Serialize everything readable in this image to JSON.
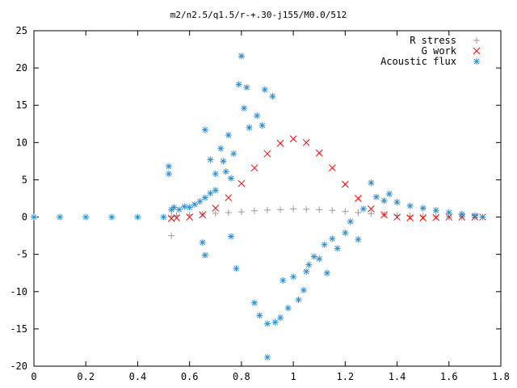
{
  "chart_data": {
    "type": "scatter",
    "title": "m2/n2.5/q1.5/r-+.30-j155/M0.0/512",
    "xlabel": "",
    "ylabel": "",
    "xlim": [
      0,
      1.8
    ],
    "ylim": [
      -20,
      25
    ],
    "x_ticks": [
      "0",
      "0.2",
      "0.4",
      "0.6",
      "0.8",
      "1",
      "1.2",
      "1.4",
      "1.6",
      "1.8"
    ],
    "y_ticks": [
      "-20",
      "-15",
      "-10",
      "-5",
      "0",
      "5",
      "10",
      "15",
      "20",
      "25"
    ],
    "grid": false,
    "legend_position": "top-right",
    "series": [
      {
        "name": "R stress",
        "marker": "plus",
        "color": "#999999",
        "points": [
          [
            0.53,
            -2.5
          ],
          [
            0.53,
            0.1
          ],
          [
            0.55,
            0.2
          ],
          [
            0.6,
            0.3
          ],
          [
            0.65,
            0.4
          ],
          [
            0.7,
            0.5
          ],
          [
            0.75,
            0.6
          ],
          [
            0.8,
            0.7
          ],
          [
            0.85,
            0.85
          ],
          [
            0.9,
            0.95
          ],
          [
            0.95,
            1.0
          ],
          [
            1.0,
            1.1
          ],
          [
            1.05,
            1.05
          ],
          [
            1.1,
            1.0
          ],
          [
            1.15,
            0.9
          ],
          [
            1.2,
            0.75
          ],
          [
            1.25,
            0.6
          ],
          [
            1.3,
            0.45
          ],
          [
            1.35,
            0.35
          ],
          [
            1.4,
            0.25
          ],
          [
            1.45,
            0.15
          ],
          [
            1.5,
            0.1
          ],
          [
            1.55,
            0.05
          ],
          [
            1.6,
            0.0
          ],
          [
            1.65,
            0.0
          ],
          [
            1.7,
            0.0
          ],
          [
            1.73,
            0.0
          ]
        ]
      },
      {
        "name": "G work",
        "marker": "cross",
        "color": "#ff0000",
        "points": [
          [
            0.53,
            -0.2
          ],
          [
            0.55,
            -0.1
          ],
          [
            0.6,
            0.0
          ],
          [
            0.65,
            0.3
          ],
          [
            0.7,
            1.2
          ],
          [
            0.75,
            2.6
          ],
          [
            0.8,
            4.5
          ],
          [
            0.85,
            6.6
          ],
          [
            0.9,
            8.5
          ],
          [
            0.95,
            9.9
          ],
          [
            1.0,
            10.5
          ],
          [
            1.05,
            10.0
          ],
          [
            1.1,
            8.6
          ],
          [
            1.15,
            6.6
          ],
          [
            1.2,
            4.4
          ],
          [
            1.25,
            2.5
          ],
          [
            1.3,
            1.1
          ],
          [
            1.35,
            0.3
          ],
          [
            1.4,
            0.0
          ],
          [
            1.45,
            -0.1
          ],
          [
            1.5,
            -0.1
          ],
          [
            1.55,
            -0.05
          ],
          [
            1.6,
            0.0
          ],
          [
            1.65,
            0.0
          ],
          [
            1.7,
            0.0
          ],
          [
            1.73,
            0.0
          ]
        ]
      },
      {
        "name": "Acoustic flux",
        "marker": "star",
        "color": "#2a8fd6",
        "points": [
          [
            0.0,
            0.0
          ],
          [
            0.1,
            0.0
          ],
          [
            0.2,
            0.0
          ],
          [
            0.3,
            0.0
          ],
          [
            0.4,
            0.0
          ],
          [
            0.5,
            0.0
          ],
          [
            0.52,
            5.8
          ],
          [
            0.52,
            6.8
          ],
          [
            0.53,
            1.0
          ],
          [
            0.54,
            1.3
          ],
          [
            0.56,
            1.0
          ],
          [
            0.58,
            1.4
          ],
          [
            0.6,
            1.3
          ],
          [
            0.62,
            1.7
          ],
          [
            0.64,
            2.1
          ],
          [
            0.66,
            2.6
          ],
          [
            0.68,
            3.2
          ],
          [
            0.7,
            3.6
          ],
          [
            0.66,
            11.7
          ],
          [
            0.65,
            -3.4
          ],
          [
            0.66,
            -5.1
          ],
          [
            0.68,
            7.7
          ],
          [
            0.7,
            5.8
          ],
          [
            0.72,
            9.2
          ],
          [
            0.73,
            7.5
          ],
          [
            0.74,
            6.1
          ],
          [
            0.75,
            11.0
          ],
          [
            0.76,
            5.2
          ],
          [
            0.77,
            8.5
          ],
          [
            0.76,
            -2.6
          ],
          [
            0.78,
            -6.9
          ],
          [
            0.79,
            17.8
          ],
          [
            0.8,
            21.6
          ],
          [
            0.81,
            14.6
          ],
          [
            0.82,
            17.4
          ],
          [
            0.83,
            12.0
          ],
          [
            0.85,
            -11.5
          ],
          [
            0.86,
            13.6
          ],
          [
            0.87,
            -13.2
          ],
          [
            0.88,
            12.3
          ],
          [
            0.89,
            17.1
          ],
          [
            0.9,
            -14.3
          ],
          [
            0.9,
            -18.8
          ],
          [
            0.92,
            16.2
          ],
          [
            0.93,
            -14.1
          ],
          [
            0.95,
            -13.5
          ],
          [
            0.96,
            -8.5
          ],
          [
            0.98,
            -12.2
          ],
          [
            1.0,
            -8.0
          ],
          [
            1.02,
            -11.1
          ],
          [
            1.04,
            -9.8
          ],
          [
            1.05,
            -7.3
          ],
          [
            1.06,
            -6.4
          ],
          [
            1.08,
            -5.3
          ],
          [
            1.1,
            -5.6
          ],
          [
            1.12,
            -3.7
          ],
          [
            1.13,
            -7.5
          ],
          [
            1.15,
            -2.9
          ],
          [
            1.17,
            -4.2
          ],
          [
            1.2,
            -2.1
          ],
          [
            1.22,
            -0.6
          ],
          [
            1.25,
            -3.0
          ],
          [
            1.27,
            1.1
          ],
          [
            1.3,
            4.6
          ],
          [
            1.32,
            2.7
          ],
          [
            1.35,
            2.2
          ],
          [
            1.37,
            3.1
          ],
          [
            1.4,
            2.0
          ],
          [
            1.45,
            1.5
          ],
          [
            1.5,
            1.2
          ],
          [
            1.55,
            0.9
          ],
          [
            1.6,
            0.6
          ],
          [
            1.65,
            0.4
          ],
          [
            1.7,
            0.2
          ],
          [
            1.73,
            0.0
          ]
        ]
      }
    ]
  }
}
